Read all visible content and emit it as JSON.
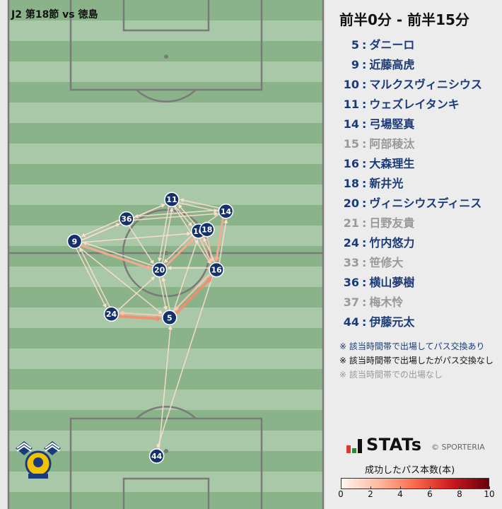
{
  "title": "J2 第18節 vs 徳島",
  "time_range": "前半0分 - 前半15分",
  "colors": {
    "active": "#1a3a7a",
    "inactive": "#999999",
    "node": "#14316b",
    "pass_low": "#f6dccd",
    "pass_high": "#f2886a"
  },
  "players": [
    {
      "num": "5",
      "name": "ダニーロ",
      "status": "active"
    },
    {
      "num": "9",
      "name": "近藤高虎",
      "status": "active"
    },
    {
      "num": "10",
      "name": "マルクスヴィニシウス",
      "status": "active"
    },
    {
      "num": "11",
      "name": "ウェズレイタンキ",
      "status": "active"
    },
    {
      "num": "14",
      "name": "弓場堅真",
      "status": "active"
    },
    {
      "num": "15",
      "name": "阿部稜汰",
      "status": "none"
    },
    {
      "num": "16",
      "name": "大森理生",
      "status": "active"
    },
    {
      "num": "18",
      "name": "新井光",
      "status": "active"
    },
    {
      "num": "20",
      "name": "ヴィニシウスディニス",
      "status": "active"
    },
    {
      "num": "21",
      "name": "日野友貴",
      "status": "none"
    },
    {
      "num": "24",
      "name": "竹内悠力",
      "status": "active"
    },
    {
      "num": "33",
      "name": "笹修大",
      "status": "none"
    },
    {
      "num": "36",
      "name": "横山夢樹",
      "status": "active"
    },
    {
      "num": "37",
      "name": "梅木怜",
      "status": "none"
    },
    {
      "num": "44",
      "name": "伊藤元太",
      "status": "active"
    }
  ],
  "legend_notes": [
    {
      "text": "※ 該当時間帯で出場してパス交換あり",
      "status": "active"
    },
    {
      "text": "※ 該当時間帯で出場したがパス交換なし",
      "status": "nopass"
    },
    {
      "text": "※ 該当時間帯での出場なし",
      "status": "none"
    }
  ],
  "brand": {
    "name": "STATs",
    "copyright": "© SPORTERIA"
  },
  "chart_data": {
    "type": "pass-network",
    "colorbar": {
      "title": "成功したパス本数(本)",
      "min": 0,
      "max": 10,
      "ticks": [
        "0",
        "2",
        "4",
        "6",
        "8",
        "10"
      ]
    },
    "nodes": [
      {
        "num": "36",
        "x": 37.5,
        "y": 57.0
      },
      {
        "num": "11",
        "x": 51.9,
        "y": 60.8
      },
      {
        "num": "14",
        "x": 69.1,
        "y": 58.5
      },
      {
        "num": "9",
        "x": 21.0,
        "y": 52.6
      },
      {
        "num": "10",
        "x": 60.4,
        "y": 54.6
      },
      {
        "num": "18",
        "x": 63.1,
        "y": 54.9
      },
      {
        "num": "20",
        "x": 48.0,
        "y": 47.0
      },
      {
        "num": "16",
        "x": 66.1,
        "y": 47.0
      },
      {
        "num": "24",
        "x": 32.7,
        "y": 38.3
      },
      {
        "num": "5",
        "x": 51.2,
        "y": 37.6
      },
      {
        "num": "44",
        "x": 47.1,
        "y": 10.4
      }
    ],
    "passes": [
      {
        "from": "24",
        "to": "5",
        "count": 4
      },
      {
        "from": "5",
        "to": "24",
        "count": 2
      },
      {
        "from": "5",
        "to": "16",
        "count": 4
      },
      {
        "from": "16",
        "to": "5",
        "count": 2
      },
      {
        "from": "20",
        "to": "10",
        "count": 3
      },
      {
        "from": "10",
        "to": "20",
        "count": 1
      },
      {
        "from": "9",
        "to": "20",
        "count": 3
      },
      {
        "from": "20",
        "to": "9",
        "count": 1
      },
      {
        "from": "14",
        "to": "16",
        "count": 3
      },
      {
        "from": "16",
        "to": "14",
        "count": 1
      },
      {
        "from": "18",
        "to": "16",
        "count": 2
      },
      {
        "from": "10",
        "to": "16",
        "count": 2
      },
      {
        "from": "16",
        "to": "10",
        "count": 1
      },
      {
        "from": "9",
        "to": "36",
        "count": 1
      },
      {
        "from": "36",
        "to": "9",
        "count": 1
      },
      {
        "from": "9",
        "to": "11",
        "count": 1
      },
      {
        "from": "9",
        "to": "10",
        "count": 1
      },
      {
        "from": "9",
        "to": "24",
        "count": 1
      },
      {
        "from": "24",
        "to": "9",
        "count": 1
      },
      {
        "from": "9",
        "to": "5",
        "count": 1
      },
      {
        "from": "36",
        "to": "11",
        "count": 1
      },
      {
        "from": "36",
        "to": "14",
        "count": 1
      },
      {
        "from": "36",
        "to": "20",
        "count": 1
      },
      {
        "from": "11",
        "to": "14",
        "count": 1
      },
      {
        "from": "11",
        "to": "20",
        "count": 1
      },
      {
        "from": "11",
        "to": "10",
        "count": 1
      },
      {
        "from": "11",
        "to": "16",
        "count": 1
      },
      {
        "from": "14",
        "to": "11",
        "count": 1
      },
      {
        "from": "14",
        "to": "10",
        "count": 1
      },
      {
        "from": "14",
        "to": "36",
        "count": 1
      },
      {
        "from": "20",
        "to": "11",
        "count": 1
      },
      {
        "from": "20",
        "to": "5",
        "count": 1
      },
      {
        "from": "5",
        "to": "20",
        "count": 1
      },
      {
        "from": "5",
        "to": "10",
        "count": 1
      },
      {
        "from": "16",
        "to": "20",
        "count": 1
      },
      {
        "from": "24",
        "to": "20",
        "count": 1
      },
      {
        "from": "44",
        "to": "5",
        "count": 1
      },
      {
        "from": "16",
        "to": "44",
        "count": 1
      },
      {
        "from": "10",
        "to": "11",
        "count": 1
      }
    ]
  }
}
